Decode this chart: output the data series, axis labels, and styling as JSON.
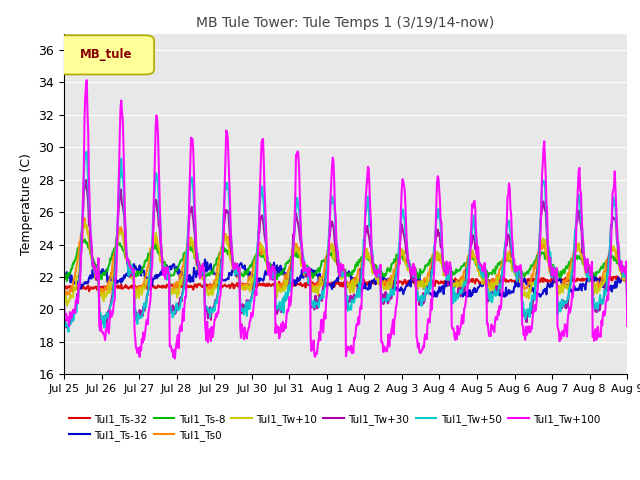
{
  "title": "MB Tule Tower: Tule Temps 1 (3/19/14-now)",
  "ylabel": "Temperature (C)",
  "ylim": [
    16,
    37
  ],
  "yticks": [
    16,
    18,
    20,
    22,
    24,
    26,
    28,
    30,
    32,
    34,
    36
  ],
  "xlabel_dates": [
    "Jul 25",
    "Jul 26",
    "Jul 27",
    "Jul 28",
    "Jul 29",
    "Jul 30",
    "Jul 31",
    "Aug 1",
    "Aug 2",
    "Aug 3",
    "Aug 4",
    "Aug 5",
    "Aug 6",
    "Aug 7",
    "Aug 8",
    "Aug 9"
  ],
  "series": {
    "Tul1_Ts-32": {
      "color": "#dd0000",
      "lw": 1.5
    },
    "Tul1_Ts-16": {
      "color": "#0000cc",
      "lw": 1.5
    },
    "Tul1_Ts-8": {
      "color": "#00bb00",
      "lw": 1.5
    },
    "Tul1_Ts0": {
      "color": "#ff8800",
      "lw": 1.5
    },
    "Tul1_Tw+10": {
      "color": "#cccc00",
      "lw": 1.5
    },
    "Tul1_Tw+30": {
      "color": "#aa00aa",
      "lw": 1.5
    },
    "Tul1_Tw+50": {
      "color": "#00cccc",
      "lw": 1.5
    },
    "Tul1_Tw+100": {
      "color": "#ff00ff",
      "lw": 1.5
    }
  },
  "legend_box_color": "#ffff99",
  "legend_box_edgecolor": "#aaaa00",
  "legend_box_text": "MB_tule",
  "legend_box_textcolor": "#880000",
  "plot_bg_color": "#e8e8e8",
  "grid_color": "#ffffff",
  "title_color": "#444444"
}
